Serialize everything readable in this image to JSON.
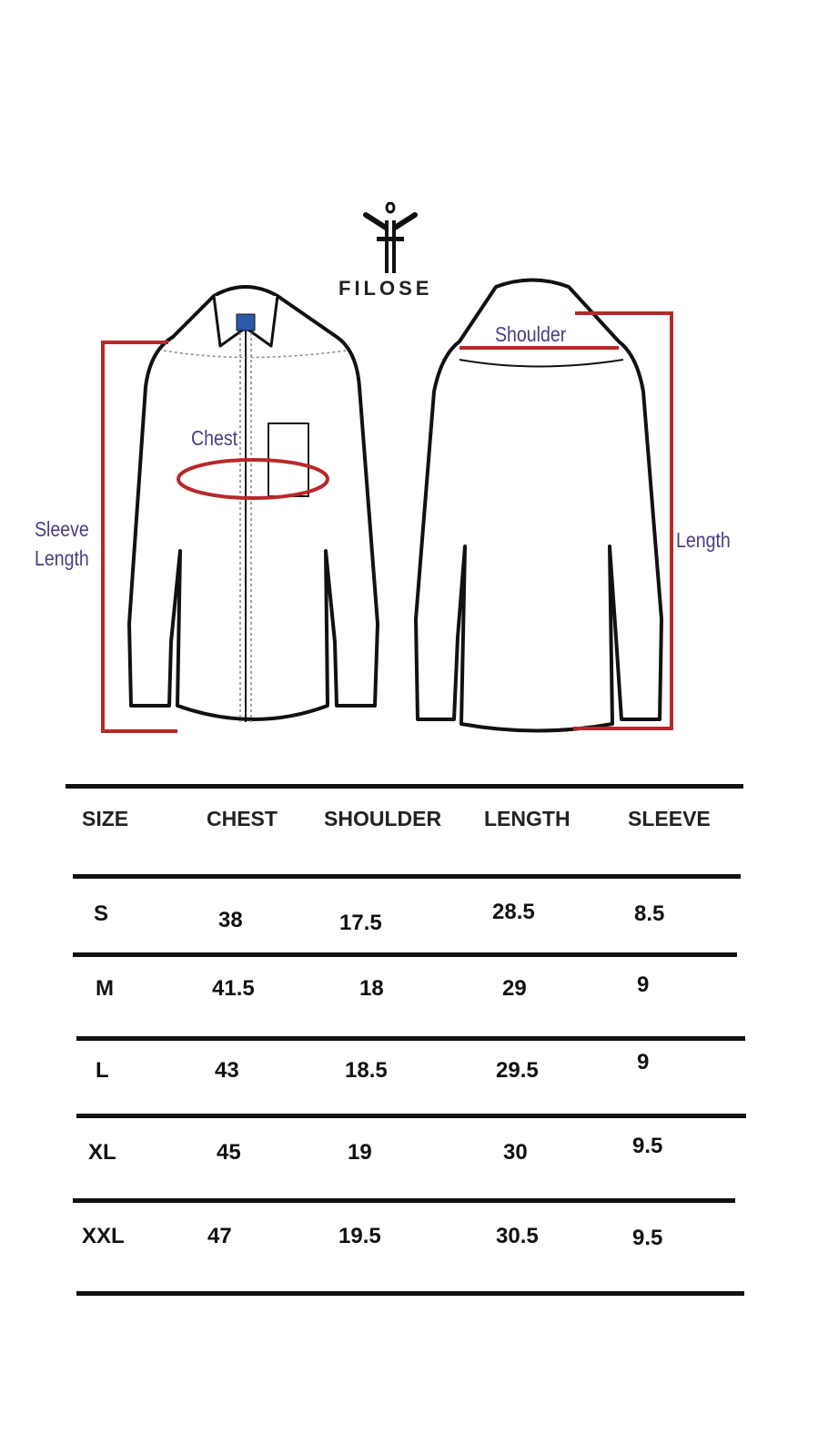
{
  "brand": {
    "name": "FILOSE"
  },
  "diagram": {
    "chest_label": "Chest",
    "sleeve_label_1": "Sleeve",
    "sleeve_label_2": "Length",
    "shoulder_label": "Shoulder",
    "length_label": "Length",
    "measure_color": "#b8282a",
    "label_color": "#4a3d86"
  },
  "table": {
    "headers": [
      "SIZE",
      "CHEST",
      "SHOULDER",
      "LENGTH",
      "SLEEVE"
    ],
    "rows": [
      [
        "S",
        "38",
        "17.5",
        "28.5",
        "8.5"
      ],
      [
        "M",
        "41.5",
        "18",
        "29",
        "9"
      ],
      [
        "L",
        "43",
        "18.5",
        "29.5",
        "9"
      ],
      [
        "XL",
        "45",
        "19",
        "30",
        "9.5"
      ],
      [
        "XXL",
        "47",
        "19.5",
        "30.5",
        "9.5"
      ]
    ]
  }
}
